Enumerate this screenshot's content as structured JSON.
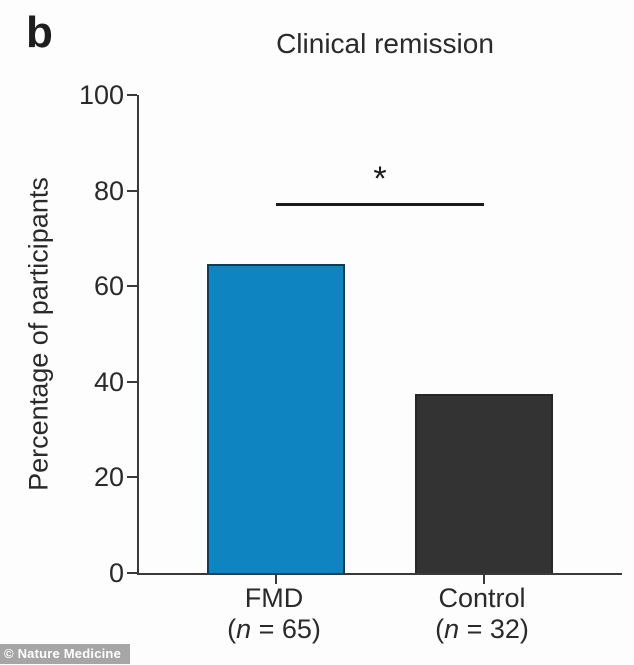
{
  "chart_data": {
    "type": "bar",
    "panel_label": "b",
    "title": "Clinical remission",
    "ylabel": "Percentage of participants",
    "xlabel": "",
    "ylim": [
      0,
      100
    ],
    "yticks": [
      0,
      20,
      40,
      60,
      80,
      100
    ],
    "grid": false,
    "legend_position": "none",
    "categories": [
      "FMD",
      "Control"
    ],
    "category_sublabels": [
      "(n = 65)",
      "(n = 32)"
    ],
    "values": [
      64.6,
      37.5
    ],
    "bar_colors": [
      "#0e85c1",
      "#333333"
    ],
    "bar_border_colors": [
      "#123c56",
      "#272727"
    ],
    "significance": {
      "marker": "*",
      "between": [
        "FMD",
        "Control"
      ],
      "line_y": 77.5
    }
  },
  "watermark": {
    "text": "© Nature Medicine"
  }
}
